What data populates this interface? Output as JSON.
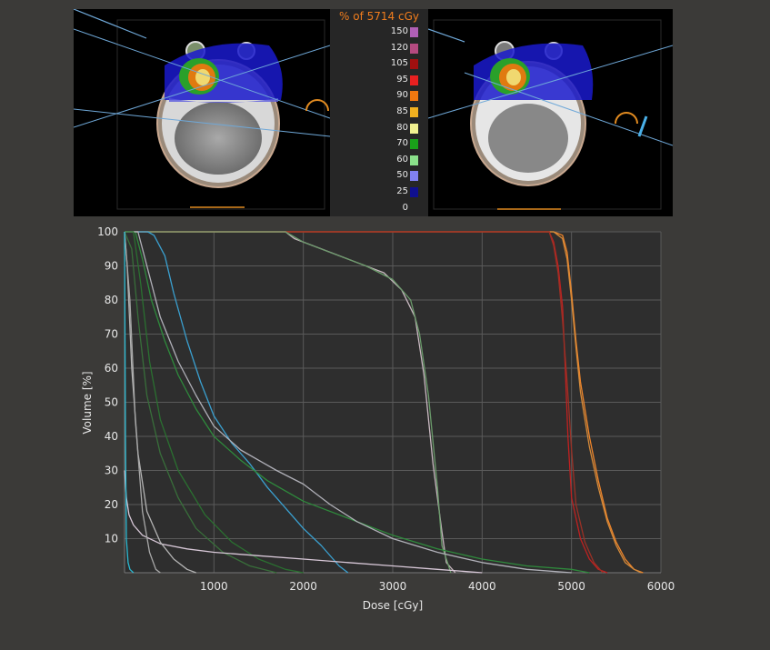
{
  "legend": {
    "title": "% of 5714 cGy",
    "levels": [
      {
        "label": "150",
        "color": "#b05fb5"
      },
      {
        "label": "120",
        "color": "#b54a80"
      },
      {
        "label": "105",
        "color": "#a01010"
      },
      {
        "label": "95",
        "color": "#e82020"
      },
      {
        "label": "90",
        "color": "#f07810"
      },
      {
        "label": "85",
        "color": "#f0b020"
      },
      {
        "label": "80",
        "color": "#f0f090"
      },
      {
        "label": "70",
        "color": "#1aa01a"
      },
      {
        "label": "60",
        "color": "#8ae08a"
      },
      {
        "label": "50",
        "color": "#8080f0"
      },
      {
        "label": "25",
        "color": "#101090"
      },
      {
        "label": "0",
        "color": "#262626"
      }
    ]
  },
  "chart_data": {
    "type": "line",
    "xlabel": "Dose [cGy]",
    "ylabel": "Volume [%]",
    "xlim": [
      0,
      6000
    ],
    "ylim": [
      0,
      100
    ],
    "xticks": [
      1000,
      2000,
      3000,
      4000,
      5000,
      6000
    ],
    "yticks": [
      10,
      20,
      30,
      40,
      50,
      60,
      70,
      80,
      90,
      100
    ],
    "grid": true,
    "series": [
      {
        "color": "#f0852a",
        "x": [
          0,
          4800,
          4900,
          4950,
          5000,
          5050,
          5100,
          5200,
          5300,
          5400,
          5500,
          5600,
          5700,
          5800
        ],
        "y": [
          100,
          100,
          99,
          94,
          82,
          68,
          56,
          40,
          27,
          16,
          9,
          4,
          1,
          0
        ]
      },
      {
        "color": "#d48a3a",
        "x": [
          0,
          4800,
          4900,
          4950,
          5000,
          5050,
          5100,
          5200,
          5300,
          5400,
          5500,
          5600,
          5700,
          5780
        ],
        "y": [
          100,
          100,
          98,
          92,
          80,
          66,
          53,
          37,
          25,
          15,
          8,
          3,
          1,
          0
        ]
      },
      {
        "color": "#c02020",
        "x": [
          0,
          4750,
          4800,
          4850,
          4900,
          4930,
          4960,
          5000,
          5100,
          5200,
          5300,
          5400
        ],
        "y": [
          100,
          100,
          97,
          90,
          78,
          60,
          40,
          22,
          10,
          4,
          1,
          0
        ]
      },
      {
        "color": "#9b3025",
        "x": [
          0,
          4750,
          4800,
          4850,
          4900,
          4950,
          5000,
          5050,
          5150,
          5250,
          5350
        ],
        "y": [
          100,
          100,
          96,
          88,
          74,
          56,
          36,
          20,
          9,
          3,
          0
        ]
      },
      {
        "color": "#c8b8c0",
        "x": [
          0,
          1800,
          1900,
          2100,
          2300,
          2600,
          2900,
          3100,
          3250,
          3350,
          3450,
          3550,
          3600,
          3700
        ],
        "y": [
          100,
          100,
          98,
          96,
          94,
          91,
          88,
          83,
          75,
          58,
          32,
          12,
          3,
          0
        ]
      },
      {
        "color": "#6a9a6a",
        "x": [
          0,
          1800,
          2000,
          2200,
          2400,
          2700,
          3000,
          3200,
          3300,
          3400,
          3500,
          3550,
          3650
        ],
        "y": [
          100,
          100,
          97,
          95,
          93,
          90,
          86,
          80,
          70,
          52,
          25,
          8,
          0
        ]
      },
      {
        "color": "#3aa0d0",
        "x": [
          0,
          260,
          330,
          450,
          550,
          700,
          850,
          1000,
          1200,
          1400,
          1600,
          1800,
          2000,
          2200,
          2400,
          2500
        ],
        "y": [
          100,
          100,
          99,
          93,
          82,
          68,
          56,
          46,
          38,
          32,
          25,
          19,
          13,
          8,
          2,
          0
        ]
      },
      {
        "color": "#2e8a3c",
        "x": [
          0,
          120,
          200,
          300,
          450,
          600,
          800,
          1000,
          1300,
          1600,
          2000,
          2500,
          3000,
          3500,
          4000,
          4500,
          5000,
          5200
        ],
        "y": [
          100,
          100,
          92,
          80,
          68,
          58,
          48,
          40,
          33,
          27,
          21,
          16,
          11,
          7,
          4,
          2,
          1,
          0
        ]
      },
      {
        "color": "#b0b0b8",
        "x": [
          0,
          150,
          250,
          400,
          600,
          800,
          1000,
          1300,
          1700,
          2000,
          2300,
          2600,
          3000,
          3500,
          4000,
          4500,
          5000
        ],
        "y": [
          100,
          100,
          90,
          75,
          62,
          52,
          43,
          36,
          30,
          26,
          20,
          15,
          10,
          6,
          3,
          1,
          0
        ]
      },
      {
        "color": "#2a7030",
        "x": [
          0,
          100,
          180,
          280,
          400,
          600,
          900,
          1200,
          1500,
          1800,
          2000
        ],
        "y": [
          100,
          100,
          85,
          62,
          45,
          30,
          17,
          9,
          4,
          1,
          0
        ]
      },
      {
        "color": "#386e3a",
        "x": [
          0,
          80,
          150,
          250,
          400,
          600,
          800,
          1100,
          1400,
          1700
        ],
        "y": [
          100,
          95,
          75,
          52,
          35,
          22,
          13,
          6,
          2,
          0
        ]
      },
      {
        "color": "#d8c8d8",
        "x": [
          0,
          20,
          50,
          100,
          200,
          400,
          700,
          1000,
          1500,
          2000,
          2500,
          3000,
          3500,
          4000
        ],
        "y": [
          30,
          22,
          17,
          14,
          11,
          8.5,
          7,
          6,
          5,
          4,
          3,
          2,
          1,
          0
        ]
      },
      {
        "color": "#b4b4b4",
        "x": [
          0,
          30,
          80,
          150,
          250,
          400,
          550,
          700,
          800
        ],
        "y": [
          100,
          90,
          60,
          35,
          18,
          9,
          4,
          1,
          0
        ]
      },
      {
        "color": "#a8a8a8",
        "x": [
          0,
          60,
          120,
          200,
          280,
          350,
          400
        ],
        "y": [
          100,
          80,
          45,
          18,
          6,
          1,
          0
        ]
      },
      {
        "color": "#2ab8d0",
        "x": [
          0,
          10,
          20,
          40,
          60,
          100
        ],
        "y": [
          100,
          40,
          10,
          3,
          1,
          0
        ]
      }
    ]
  }
}
